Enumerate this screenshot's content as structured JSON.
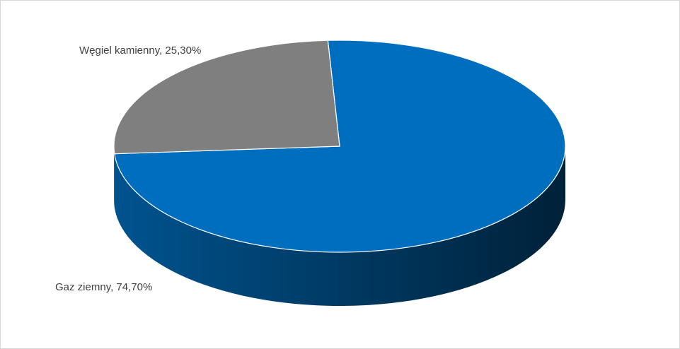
{
  "chart_data": {
    "type": "pie3d",
    "values": [
      74.7,
      25.3
    ],
    "value_labels": [
      "Gaz ziemny, 74,70%",
      "Węgiel kamienny, 25,30%"
    ],
    "colors": [
      "#006ebf",
      "#7f7f7f"
    ]
  }
}
